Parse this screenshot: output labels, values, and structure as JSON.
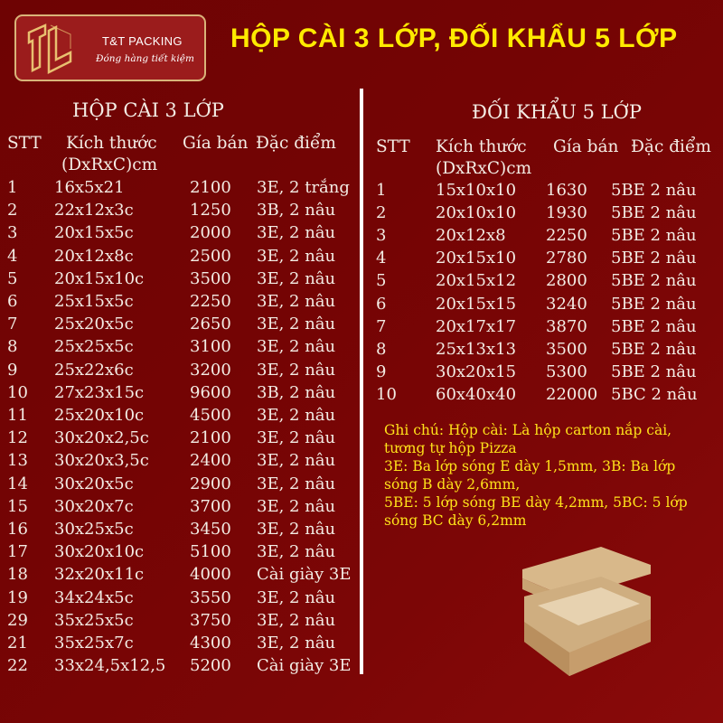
{
  "logo": {
    "name": "T&T PACKING",
    "slogan": "Đóng hàng tiết kiệm"
  },
  "title": "HỘP CÀI 3 LỚP, ĐỐI KHẨU 5 LỚP",
  "colors": {
    "background": "#740404",
    "title": "#ffea00",
    "note": "#ffe21a",
    "text": "#f3ece4"
  },
  "left": {
    "heading": "HỘP CÀI 3 LỚP",
    "columns": {
      "stt": "STT",
      "size": "Kích thước",
      "size_unit": "(DxRxC)cm",
      "price": "Gía bán",
      "feature": "Đặc điểm"
    },
    "rows": [
      {
        "stt": "1",
        "size": "16x5x21",
        "price": "2100",
        "feature": "3E, 2 trắng"
      },
      {
        "stt": "2",
        "size": "22x12x3c",
        "price": "1250",
        "feature": "3B, 2 nâu"
      },
      {
        "stt": "3",
        "size": "20x15x5c",
        "price": "2000",
        "feature": "3E, 2 nâu"
      },
      {
        "stt": "4",
        "size": "20x12x8c",
        "price": "2500",
        "feature": "3E, 2 nâu"
      },
      {
        "stt": "5",
        "size": "20x15x10c",
        "price": "3500",
        "feature": "3E, 2 nâu"
      },
      {
        "stt": "6",
        "size": "25x15x5c",
        "price": "2250",
        "feature": "3E, 2 nâu"
      },
      {
        "stt": "7",
        "size": "25x20x5c",
        "price": "2650",
        "feature": "3E, 2 nâu"
      },
      {
        "stt": "8",
        "size": "25x25x5c",
        "price": "3100",
        "feature": "3E, 2 nâu"
      },
      {
        "stt": "9",
        "size": "25x22x6c",
        "price": "3200",
        "feature": "3E, 2 nâu"
      },
      {
        "stt": "10",
        "size": "27x23x15c",
        "price": "9600",
        "feature": "3B, 2 nâu"
      },
      {
        "stt": "11",
        "size": "25x20x10c",
        "price": "4500",
        "feature": "3E, 2 nâu"
      },
      {
        "stt": "12",
        "size": "30x20x2,5c",
        "price": "2100",
        "feature": "3E, 2 nâu"
      },
      {
        "stt": "13",
        "size": "30x20x3,5c",
        "price": "2400",
        "feature": "3E, 2 nâu"
      },
      {
        "stt": "14",
        "size": "30x20x5c",
        "price": "2900",
        "feature": "3E, 2 nâu"
      },
      {
        "stt": "15",
        "size": "30x20x7c",
        "price": "3700",
        "feature": "3E, 2 nâu"
      },
      {
        "stt": "16",
        "size": "30x25x5c",
        "price": "3450",
        "feature": "3E, 2 nâu"
      },
      {
        "stt": "17",
        "size": "30x20x10c",
        "price": "5100",
        "feature": "3E, 2 nâu"
      },
      {
        "stt": "18",
        "size": "32x20x11c",
        "price": "4000",
        "feature": "Cài giày 3E"
      },
      {
        "stt": "19",
        "size": "34x24x5c",
        "price": "3550",
        "feature": "3E, 2 nâu"
      },
      {
        "stt": "29",
        "size": "35x25x5c",
        "price": "3750",
        "feature": "3E, 2 nâu"
      },
      {
        "stt": "21",
        "size": "35x25x7c",
        "price": "4300",
        "feature": "3E, 2 nâu"
      },
      {
        "stt": "22",
        "size": "33x24,5x12,5",
        "price": "5200",
        "feature": "Cài giày 3E"
      }
    ]
  },
  "right": {
    "heading": "ĐỐI KHẨU 5 LỚP",
    "columns": {
      "stt": "STT",
      "size": "Kích thước",
      "size_unit": "(DxRxC)cm",
      "price": "Gía bán",
      "feature": "Đặc điểm"
    },
    "rows": [
      {
        "stt": "1",
        "size": "15x10x10",
        "price": "1630",
        "feature": "5BE 2 nâu"
      },
      {
        "stt": "2",
        "size": "20x10x10",
        "price": "1930",
        "feature": "5BE 2 nâu"
      },
      {
        "stt": "3",
        "size": "20x12x8",
        "price": "2250",
        "feature": "5BE 2 nâu"
      },
      {
        "stt": "4",
        "size": "20x15x10",
        "price": "2780",
        "feature": "5BE 2 nâu"
      },
      {
        "stt": "5",
        "size": "20x15x12",
        "price": "2800",
        "feature": "5BE 2 nâu"
      },
      {
        "stt": "6",
        "size": "20x15x15",
        "price": "3240",
        "feature": "5BE 2 nâu"
      },
      {
        "stt": "7",
        "size": "20x17x17",
        "price": "3870",
        "feature": "5BE 2 nâu"
      },
      {
        "stt": "8",
        "size": "25x13x13",
        "price": "3500",
        "feature": "5BE 2 nâu"
      },
      {
        "stt": "9",
        "size": "30x20x15",
        "price": "5300",
        "feature": "5BE 2 nâu"
      },
      {
        "stt": "10",
        "size": "60x40x40",
        "price": "22000",
        "feature": "5BC 2 nâu"
      }
    ]
  },
  "note": [
    "Ghi chú: Hộp cài: Là hộp carton nắp cài,",
    "tương tự hộp Pizza",
    "3E: Ba lớp sóng E dày 1,5mm, 3B: Ba lớp",
    "sóng B dày 2,6mm,",
    "5BE: 5 lớp sóng BE dày 4,2mm, 5BC: 5 lớp",
    "sóng BC dày 6,2mm"
  ]
}
